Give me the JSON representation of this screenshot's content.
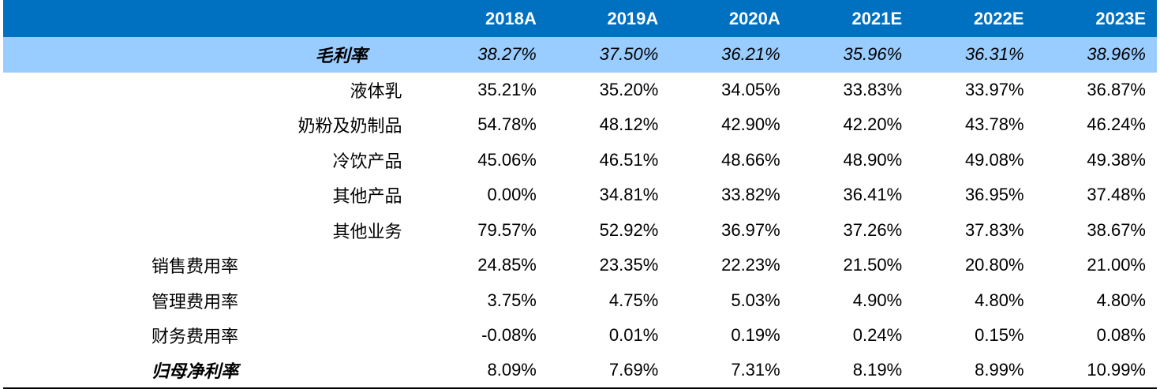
{
  "columns": [
    "2018A",
    "2019A",
    "2020A",
    "2021E",
    "2022E",
    "2023E"
  ],
  "rows": [
    {
      "label": "毛利率",
      "values": [
        "38.27%",
        "37.50%",
        "36.21%",
        "35.96%",
        "36.31%",
        "38.96%"
      ]
    },
    {
      "label": "液体乳",
      "values": [
        "35.21%",
        "35.20%",
        "34.05%",
        "33.83%",
        "33.97%",
        "36.87%"
      ]
    },
    {
      "label": "奶粉及奶制品",
      "values": [
        "54.78%",
        "48.12%",
        "42.90%",
        "42.20%",
        "43.78%",
        "46.24%"
      ]
    },
    {
      "label": "冷饮产品",
      "values": [
        "45.06%",
        "46.51%",
        "48.66%",
        "48.90%",
        "49.08%",
        "49.38%"
      ]
    },
    {
      "label": "其他产品",
      "values": [
        "0.00%",
        "34.81%",
        "33.82%",
        "36.41%",
        "36.95%",
        "37.48%"
      ]
    },
    {
      "label": "其他业务",
      "values": [
        "79.57%",
        "52.92%",
        "36.97%",
        "37.26%",
        "37.83%",
        "38.67%"
      ]
    },
    {
      "label": "销售费用率",
      "values": [
        "24.85%",
        "23.35%",
        "22.23%",
        "21.50%",
        "20.80%",
        "21.00%"
      ]
    },
    {
      "label": "管理费用率",
      "values": [
        "3.75%",
        "4.75%",
        "5.03%",
        "4.90%",
        "4.80%",
        "4.80%"
      ]
    },
    {
      "label": "财务费用率",
      "values": [
        "-0.08%",
        "0.01%",
        "0.19%",
        "0.24%",
        "0.15%",
        "0.08%"
      ]
    },
    {
      "label": "归母净利率",
      "values": [
        "8.09%",
        "7.69%",
        "7.31%",
        "8.19%",
        "8.99%",
        "10.99%"
      ]
    }
  ],
  "colors": {
    "header_bg": "#0070c0",
    "highlight_bg": "#99ccff",
    "header_text": "#ffffff"
  }
}
